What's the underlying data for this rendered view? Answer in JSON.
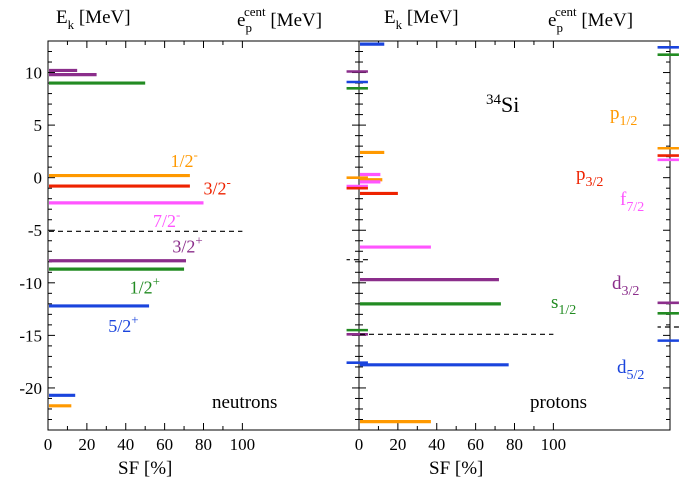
{
  "chart_data": [
    {
      "type": "bar",
      "panel_label": "neutrons",
      "header_left": {
        "main": "E",
        "sub": "k",
        "unit": " [MeV]"
      },
      "header_right": {
        "main": "e",
        "sub": "p",
        "sup": "cent",
        "unit": " [MeV]"
      },
      "xlabel": "SF [%]",
      "xticks": [
        "0",
        "20",
        "40",
        "60",
        "80",
        "100"
      ],
      "xlim": [
        0,
        160
      ],
      "ylim": [
        -24,
        13
      ],
      "yticks": [
        "-20",
        "-15",
        "-10",
        "-5",
        "0",
        "5",
        "10"
      ],
      "colors": {
        "s1/2": "#228b22",
        "p1/2": "#ff9900",
        "p3/2": "#ee2200",
        "d5/2": "#1a44dd",
        "d3/2": "#8b2e8b",
        "f7/2": "#ff55ff",
        "g9/2": "#8b2e8b",
        "h11/2": "#ff9900"
      },
      "sf_lines": [
        {
          "energy": 10.2,
          "sf": 15,
          "orbital": "g9/2"
        },
        {
          "energy": 9.8,
          "sf": 25,
          "orbital": "g9/2"
        },
        {
          "energy": 9.0,
          "sf": 50,
          "orbital": "s1/2"
        },
        {
          "energy": 0.2,
          "sf": 73,
          "orbital": "p1/2"
        },
        {
          "energy": -0.8,
          "sf": 73,
          "orbital": "p3/2"
        },
        {
          "energy": -2.4,
          "sf": 80,
          "orbital": "f7/2"
        },
        {
          "energy": -7.9,
          "sf": 71,
          "orbital": "d3/2"
        },
        {
          "energy": -8.7,
          "sf": 70,
          "orbital": "s1/2"
        },
        {
          "energy": -12.2,
          "sf": 52,
          "orbital": "d5/2"
        },
        {
          "energy": -20.7,
          "sf": 14,
          "orbital": "d5/2"
        },
        {
          "energy": -21.7,
          "sf": 12,
          "orbital": "h11/2"
        }
      ],
      "centroids": [
        {
          "energy": 10.1,
          "orbital": "g9/2"
        },
        {
          "energy": 9.1,
          "orbital": "d5/2"
        },
        {
          "energy": 8.5,
          "orbital": "s1/2"
        },
        {
          "energy": 0.0,
          "orbital": "p1/2"
        },
        {
          "energy": -0.8,
          "orbital": "f7/2"
        },
        {
          "energy": -1.0,
          "orbital": "p3/2"
        },
        {
          "energy": -14.5,
          "orbital": "s1/2"
        },
        {
          "energy": -14.9,
          "orbital": "d3/2"
        },
        {
          "energy": -17.6,
          "orbital": "d5/2"
        }
      ],
      "fermi_sf": {
        "energy": -5.1,
        "sf_end": 100
      },
      "fermi_centroid": {
        "energy": -7.8
      },
      "level_labels": [
        {
          "main": "1/2",
          "sup": "-",
          "energy": 1.0,
          "sf": 63,
          "orbital": "p1/2"
        },
        {
          "main": "3/2",
          "sup": "-",
          "energy": -1.6,
          "sf": 80,
          "orbital": "p3/2"
        },
        {
          "main": "7/2",
          "sup": "-",
          "energy": -4.7,
          "sf": 54,
          "orbital": "f7/2"
        },
        {
          "main": "3/2",
          "sup": "+",
          "energy": -7.1,
          "sf": 64,
          "orbital": "d3/2"
        },
        {
          "main": "1/2",
          "sup": "+",
          "energy": -11.0,
          "sf": 42,
          "orbital": "s1/2"
        },
        {
          "main": "5/2",
          "sup": "+",
          "energy": -14.7,
          "sf": 31,
          "orbital": "d5/2"
        }
      ]
    },
    {
      "type": "bar",
      "panel_label": "protons",
      "nucleus": {
        "sup": "34",
        "main": "Si"
      },
      "header_left": {
        "main": "E",
        "sub": "k",
        "unit": " [MeV]"
      },
      "header_right": {
        "main": "e",
        "sub": "p",
        "sup": "cent",
        "unit": " [MeV]"
      },
      "xlabel": "SF [%]",
      "xticks": [
        "0",
        "20",
        "40",
        "60",
        "80",
        "100"
      ],
      "xlim": [
        0,
        160
      ],
      "ylim": [
        -24,
        13
      ],
      "colors": {
        "s1/2": "#228b22",
        "p1/2": "#ff9900",
        "p3/2": "#ee2200",
        "d5/2": "#1a44dd",
        "d3/2": "#8b2e8b",
        "f7/2": "#ff55ff"
      },
      "sf_lines": [
        {
          "energy": 12.7,
          "sf": 13,
          "orbital": "d5/2"
        },
        {
          "energy": 2.4,
          "sf": 13,
          "orbital": "p1/2"
        },
        {
          "energy": 0.3,
          "sf": 11,
          "orbital": "f7/2"
        },
        {
          "energy": -0.2,
          "sf": 12,
          "orbital": "p1/2"
        },
        {
          "energy": -0.4,
          "sf": 11,
          "orbital": "f7/2"
        },
        {
          "energy": -1.5,
          "sf": 20,
          "orbital": "p3/2"
        },
        {
          "energy": -6.6,
          "sf": 37,
          "orbital": "f7/2"
        },
        {
          "energy": -9.7,
          "sf": 72,
          "orbital": "d3/2"
        },
        {
          "energy": -12.0,
          "sf": 73,
          "orbital": "s1/2"
        },
        {
          "energy": -17.8,
          "sf": 77,
          "orbital": "d5/2"
        },
        {
          "energy": -23.2,
          "sf": 37,
          "orbital": "p1/2"
        }
      ],
      "centroids": [
        {
          "energy": 12.4,
          "orbital": "d5/2"
        },
        {
          "energy": 11.7,
          "orbital": "s1/2"
        },
        {
          "energy": 2.8,
          "orbital": "p1/2"
        },
        {
          "energy": 2.1,
          "orbital": "p3/2"
        },
        {
          "energy": 1.7,
          "orbital": "f7/2"
        },
        {
          "energy": -11.9,
          "orbital": "d3/2"
        },
        {
          "energy": -12.9,
          "orbital": "s1/2"
        },
        {
          "energy": -15.5,
          "orbital": "d5/2"
        }
      ],
      "fermi_sf": {
        "energy": -14.9,
        "sf_end": 100
      },
      "fermi_centroid": {
        "energy": -14.2
      },
      "orbital_labels": [
        {
          "main": "p",
          "sub": "1/2",
          "energy": 5.6,
          "orbital": "p1/2"
        },
        {
          "main": "p",
          "sub": "3/2",
          "energy": -0.2,
          "orbital": "p3/2"
        },
        {
          "main": "f",
          "sub": "7/2",
          "energy": -2.6,
          "orbital": "f7/2"
        },
        {
          "main": "d",
          "sub": "3/2",
          "energy": -10.6,
          "orbital": "d3/2"
        },
        {
          "main": "s",
          "sub": "1/2",
          "energy": -12.4,
          "orbital": "s1/2"
        },
        {
          "main": "d",
          "sub": "5/2",
          "energy": -18.6,
          "orbital": "d5/2"
        }
      ]
    }
  ]
}
